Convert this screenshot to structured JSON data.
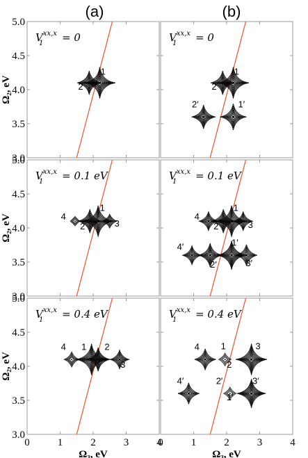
{
  "column_titles": [
    "(a)",
    "(b)"
  ],
  "chart_data": {
    "type": "contour",
    "xlabel": "Ω₃, eV",
    "ylabel": "Ω₂, eV",
    "xlim": [
      0,
      4
    ],
    "ylim": [
      3.0,
      5.0
    ],
    "xticks": [
      "0",
      "1",
      "2",
      "3",
      "4"
    ],
    "yticks": [
      "3.0",
      "3.5",
      "4.0",
      "4.5",
      "5.0"
    ],
    "diagonal_line": {
      "color": "#e8532e",
      "from": [
        1.5,
        3.0
      ],
      "to": [
        2.58,
        5.0
      ]
    },
    "panels": [
      {
        "col": 0,
        "row": 0,
        "param": "V",
        "sup": "xx,x",
        "sub": "1",
        "value": "= 0",
        "peaks": [
          {
            "x": 1.88,
            "y": 4.1,
            "amp": 0.7
          },
          {
            "x": 2.2,
            "y": 4.1,
            "amp": 1.0
          }
        ],
        "labels": [
          {
            "text": "1",
            "x": 2.3,
            "y": 4.22
          },
          {
            "text": "2",
            "x": 1.62,
            "y": 4.0
          }
        ]
      },
      {
        "col": 1,
        "row": 0,
        "param": "V",
        "sup": "xx,x",
        "sub": "1",
        "value": "= 0",
        "peaks": [
          {
            "x": 1.88,
            "y": 4.1,
            "amp": 0.7
          },
          {
            "x": 2.2,
            "y": 4.1,
            "amp": 1.0
          },
          {
            "x": 1.3,
            "y": 3.6,
            "amp": 0.7
          },
          {
            "x": 2.2,
            "y": 3.6,
            "amp": 0.8
          }
        ],
        "labels": [
          {
            "text": "1",
            "x": 2.3,
            "y": 4.22
          },
          {
            "text": "2",
            "x": 1.62,
            "y": 4.0
          },
          {
            "text": "2′",
            "x": 1.05,
            "y": 3.74
          },
          {
            "text": "1′",
            "x": 2.45,
            "y": 3.74
          }
        ]
      },
      {
        "col": 0,
        "row": 1,
        "param": "V",
        "sup": "xx,x",
        "sub": "1",
        "value": "= 0.1 eV",
        "peaks": [
          {
            "x": 1.9,
            "y": 4.1,
            "amp": 0.7
          },
          {
            "x": 2.15,
            "y": 4.1,
            "amp": 1.0
          },
          {
            "x": 2.5,
            "y": 4.1,
            "amp": 0.3
          },
          {
            "x": 1.45,
            "y": 4.1,
            "amp": 0.12
          }
        ],
        "labels": [
          {
            "text": "1",
            "x": 2.28,
            "y": 4.25
          },
          {
            "text": "2",
            "x": 1.68,
            "y": 3.98
          },
          {
            "text": "3",
            "x": 2.72,
            "y": 4.02
          },
          {
            "text": "4",
            "x": 1.1,
            "y": 4.12
          }
        ]
      },
      {
        "col": 1,
        "row": 1,
        "param": "V",
        "sup": "xx,x",
        "sub": "1",
        "value": "= 0.1 eV",
        "peaks": [
          {
            "x": 1.9,
            "y": 4.1,
            "amp": 0.7
          },
          {
            "x": 2.15,
            "y": 4.1,
            "amp": 1.0
          },
          {
            "x": 2.5,
            "y": 4.1,
            "amp": 0.5
          },
          {
            "x": 1.45,
            "y": 4.1,
            "amp": 0.5
          },
          {
            "x": 0.95,
            "y": 3.6,
            "amp": 0.5
          },
          {
            "x": 1.5,
            "y": 3.6,
            "amp": 0.7
          },
          {
            "x": 2.15,
            "y": 3.6,
            "amp": 0.9
          },
          {
            "x": 2.6,
            "y": 3.6,
            "amp": 0.6
          }
        ],
        "labels": [
          {
            "text": "1",
            "x": 2.28,
            "y": 4.25
          },
          {
            "text": "2",
            "x": 1.68,
            "y": 3.98
          },
          {
            "text": "3",
            "x": 2.72,
            "y": 4.0
          },
          {
            "text": "4",
            "x": 1.1,
            "y": 4.12
          },
          {
            "text": "4′",
            "x": 0.6,
            "y": 3.68
          },
          {
            "text": "2′",
            "x": 1.6,
            "y": 3.42
          },
          {
            "text": "1′",
            "x": 2.25,
            "y": 3.74
          },
          {
            "text": "3′",
            "x": 2.68,
            "y": 3.44
          }
        ]
      },
      {
        "col": 0,
        "row": 2,
        "param": "V",
        "sup": "xx,x",
        "sub": "1",
        "value": "= 0.4 eV",
        "peaks": [
          {
            "x": 1.95,
            "y": 4.1,
            "amp": 1.0
          },
          {
            "x": 2.15,
            "y": 4.1,
            "amp": 0.7
          },
          {
            "x": 2.8,
            "y": 4.1,
            "amp": 0.5
          },
          {
            "x": 1.35,
            "y": 4.1,
            "amp": 0.35
          }
        ],
        "labels": [
          {
            "text": "1",
            "x": 1.72,
            "y": 4.24
          },
          {
            "text": "2",
            "x": 2.42,
            "y": 4.24
          },
          {
            "text": "3",
            "x": 2.9,
            "y": 3.98
          },
          {
            "text": "4",
            "x": 1.1,
            "y": 4.24
          }
        ]
      },
      {
        "col": 1,
        "row": 2,
        "param": "V",
        "sup": "xx,x",
        "sub": "1",
        "value": "= 0.4 eV",
        "peaks": [
          {
            "x": 1.35,
            "y": 4.1,
            "amp": 0.6
          },
          {
            "x": 1.95,
            "y": 4.1,
            "amp": 0.25
          },
          {
            "x": 2.75,
            "y": 4.1,
            "amp": 1.0
          },
          {
            "x": 0.85,
            "y": 3.6,
            "amp": 0.6
          },
          {
            "x": 2.1,
            "y": 3.6,
            "amp": 0.25
          },
          {
            "x": 2.75,
            "y": 3.6,
            "amp": 0.9
          }
        ],
        "labels": [
          {
            "text": "4",
            "x": 1.1,
            "y": 4.24
          },
          {
            "text": "1",
            "x": 1.9,
            "y": 4.25
          },
          {
            "text": "2",
            "x": 2.08,
            "y": 3.98
          },
          {
            "text": "3",
            "x": 2.95,
            "y": 4.25
          },
          {
            "text": "4′",
            "x": 0.6,
            "y": 3.74
          },
          {
            "text": "2′",
            "x": 1.78,
            "y": 3.74
          },
          {
            "text": "1′",
            "x": 2.1,
            "y": 3.5
          },
          {
            "text": "3′",
            "x": 2.88,
            "y": 3.74
          }
        ]
      }
    ]
  }
}
